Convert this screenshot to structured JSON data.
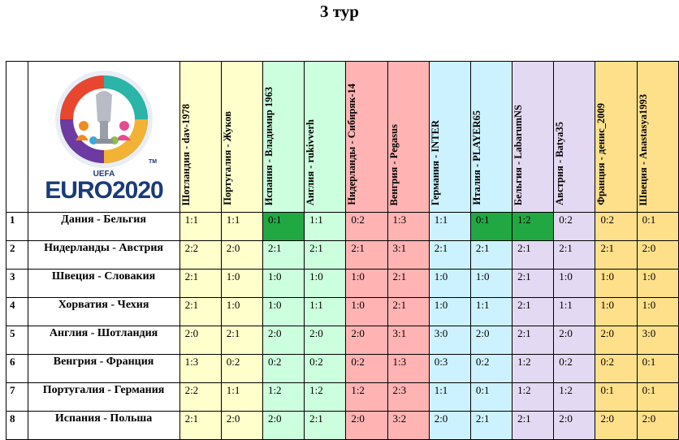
{
  "title": "3 тур",
  "colors": {
    "yellow": "#ffffcc",
    "green": "#ccffdd",
    "pink": "#ffb3b3",
    "cyan": "#ccf2ff",
    "lavender": "#e3d9f2",
    "gold": "#ffe08a",
    "highlight": "#21a843"
  },
  "logo": {
    "wordmark": "EURO2020",
    "uefa": "UEFA",
    "tm": "TM"
  },
  "players": [
    {
      "label": "Шотландия - dav-1978",
      "color": "yellow"
    },
    {
      "label": "Португалия - Жуков",
      "color": "yellow"
    },
    {
      "label": "Испания - Владимир 1963",
      "color": "green"
    },
    {
      "label": "Англия - rukivverh",
      "color": "green"
    },
    {
      "label": "Нидерланды - Сибиряк-14",
      "color": "pink"
    },
    {
      "label": "Венгрия - Pegasus",
      "color": "pink"
    },
    {
      "label": "Германия - INTER",
      "color": "cyan"
    },
    {
      "label": "Италия - PLAYER65",
      "color": "cyan"
    },
    {
      "label": "Бельгия - LabarumNS",
      "color": "lavender"
    },
    {
      "label": "Австрия - Batya35",
      "color": "lavender"
    },
    {
      "label": "Франция - денис_2009",
      "color": "gold"
    },
    {
      "label": "Швеция - Anastasya1993",
      "color": "gold"
    }
  ],
  "matches": [
    {
      "num": "1",
      "name": "Дания - Бельгия",
      "scores": [
        "1:1",
        "1:1",
        "0:1",
        "1:1",
        "0:2",
        "1:3",
        "1:1",
        "0:1",
        "1:2",
        "0:2",
        "0:2",
        "0:1"
      ],
      "highlight": [
        2,
        7,
        8
      ]
    },
    {
      "num": "2",
      "name": "Нидерланды - Австрия",
      "scores": [
        "2:2",
        "2:0",
        "2:1",
        "2:1",
        "2:1",
        "3:1",
        "2:1",
        "2:1",
        "2:1",
        "2:1",
        "2:1",
        "2:0"
      ],
      "highlight": []
    },
    {
      "num": "3",
      "name": "Швеция - Словакия",
      "scores": [
        "2:1",
        "1:0",
        "1:0",
        "1:0",
        "1:0",
        "2:1",
        "1:0",
        "1:0",
        "2:1",
        "1:0",
        "1:0",
        "1:0"
      ],
      "highlight": []
    },
    {
      "num": "4",
      "name": "Хорватия - Чехия",
      "scores": [
        "2:1",
        "1:0",
        "1:0",
        "1:1",
        "1:0",
        "2:1",
        "1:0",
        "1:1",
        "2:1",
        "1:1",
        "1:0",
        "1:0"
      ],
      "highlight": []
    },
    {
      "num": "5",
      "name": "Англия - Шотландия",
      "scores": [
        "2:0",
        "2:1",
        "2:0",
        "2:0",
        "2:0",
        "3:1",
        "3:0",
        "2:0",
        "2:1",
        "2:0",
        "2:0",
        "3:0"
      ],
      "highlight": []
    },
    {
      "num": "6",
      "name": "Венгрия - Франция",
      "scores": [
        "1:3",
        "0:2",
        "0:2",
        "0:2",
        "0:2",
        "1:3",
        "0:3",
        "0:2",
        "1:2",
        "0:2",
        "0:2",
        "0:1"
      ],
      "highlight": []
    },
    {
      "num": "7",
      "name": "Португалия - Германия",
      "scores": [
        "2:2",
        "1:1",
        "1:2",
        "1:2",
        "1:2",
        "2:3",
        "1:1",
        "0:1",
        "1:2",
        "1:2",
        "0:1",
        "0:1"
      ],
      "highlight": []
    },
    {
      "num": "8",
      "name": "Испания - Польша",
      "scores": [
        "2:1",
        "2:0",
        "2:0",
        "2:1",
        "2:0",
        "3:2",
        "2:0",
        "2:1",
        "2:1",
        "2:0",
        "2:0",
        "2:0"
      ],
      "highlight": []
    }
  ]
}
